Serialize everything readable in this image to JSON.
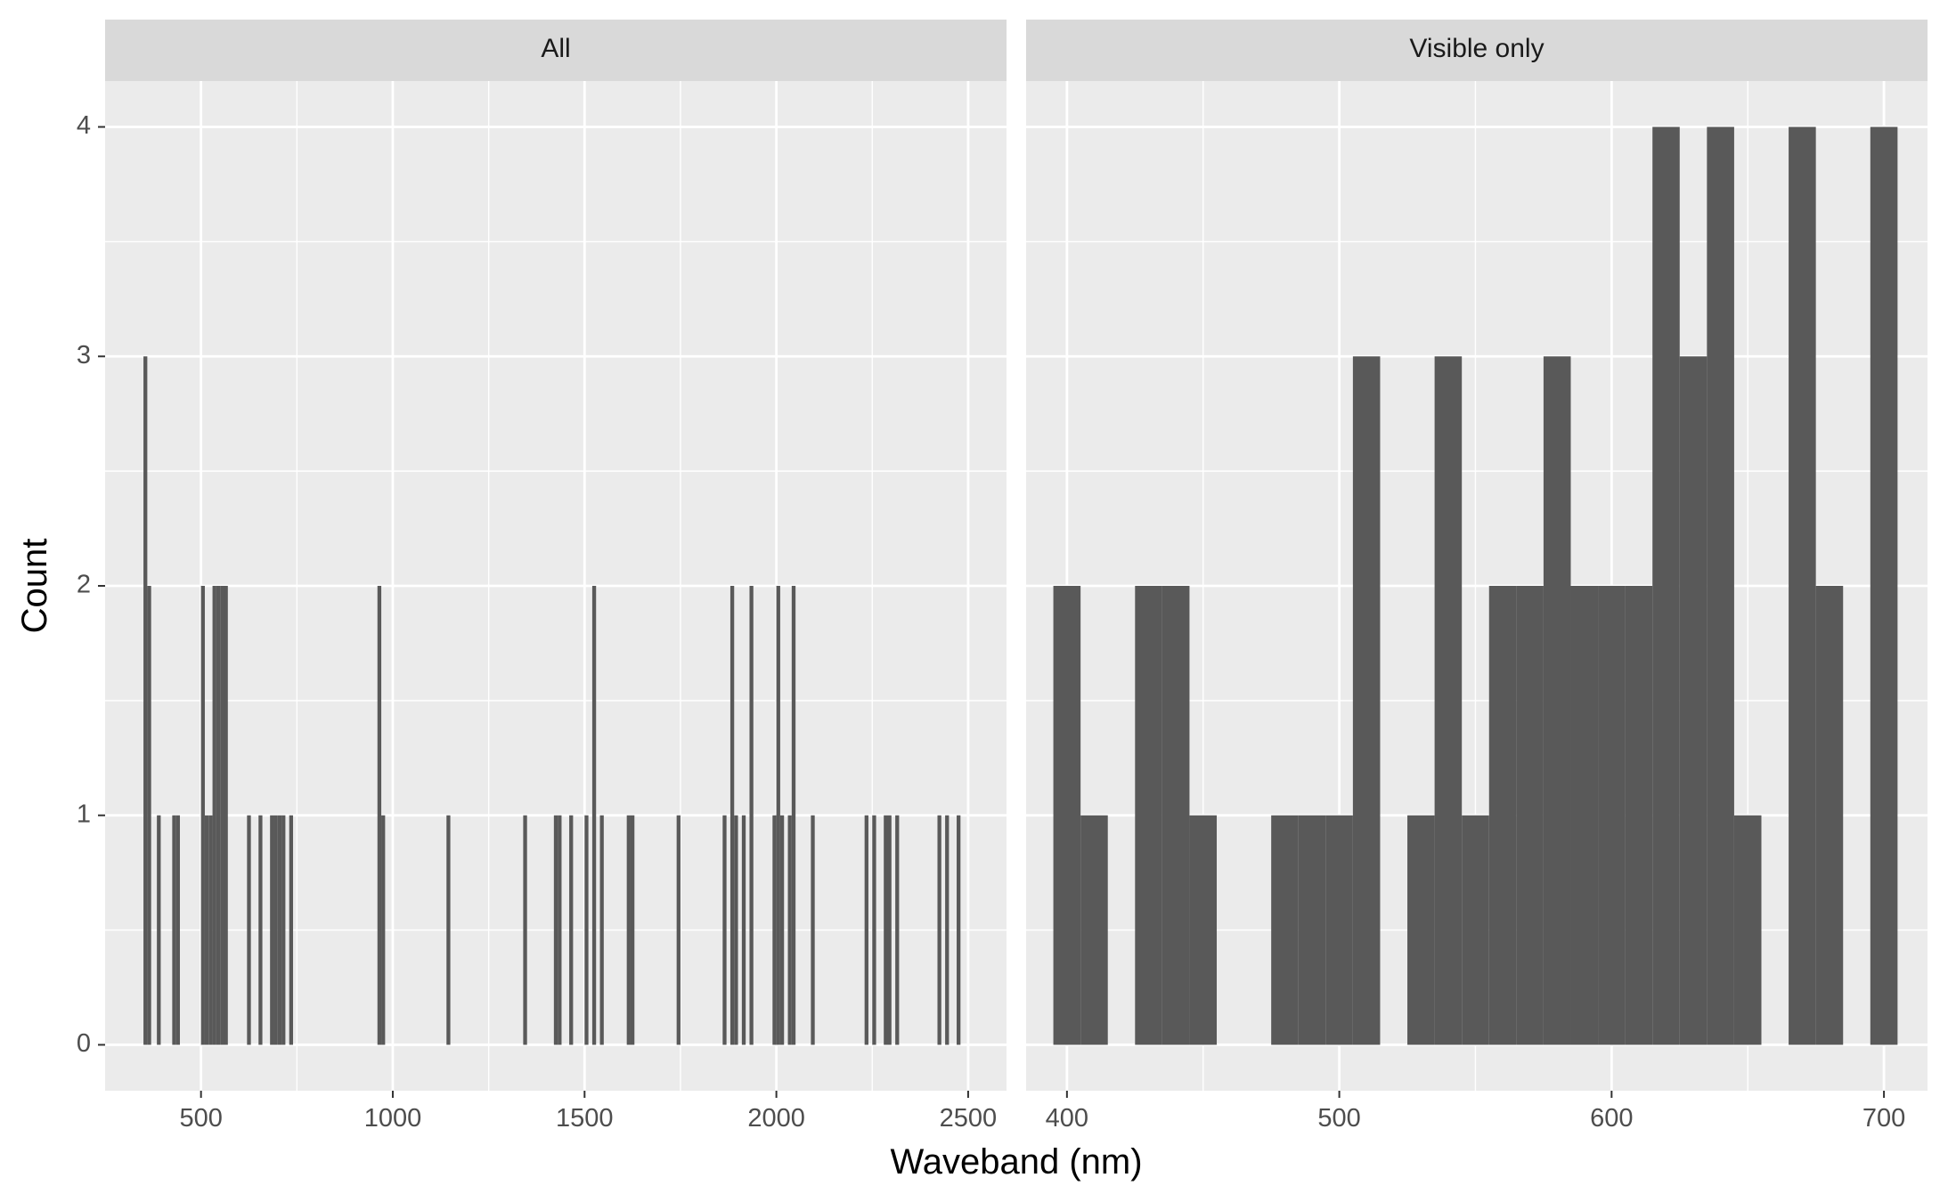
{
  "chart_data": {
    "type": "bar",
    "xlabel": "Waveband (nm)",
    "ylabel": "Count",
    "ylim": [
      -0.2,
      4.2
    ],
    "yticks": [
      0,
      1,
      2,
      3,
      4
    ],
    "grid": true,
    "facets": [
      {
        "strip": "All",
        "xlim": [
          250,
          2600
        ],
        "xticks": [
          500,
          1000,
          1500,
          2000,
          2500
        ],
        "bin_width": 10,
        "bins": [
          {
            "x": 355,
            "y": 3
          },
          {
            "x": 365,
            "y": 2
          },
          {
            "x": 390,
            "y": 1
          },
          {
            "x": 430,
            "y": 1
          },
          {
            "x": 440,
            "y": 1
          },
          {
            "x": 505,
            "y": 2
          },
          {
            "x": 515,
            "y": 1
          },
          {
            "x": 525,
            "y": 1
          },
          {
            "x": 535,
            "y": 2
          },
          {
            "x": 545,
            "y": 2
          },
          {
            "x": 555,
            "y": 2
          },
          {
            "x": 565,
            "y": 2
          },
          {
            "x": 625,
            "y": 1
          },
          {
            "x": 655,
            "y": 1
          },
          {
            "x": 685,
            "y": 1
          },
          {
            "x": 695,
            "y": 1
          },
          {
            "x": 705,
            "y": 1
          },
          {
            "x": 715,
            "y": 1
          },
          {
            "x": 735,
            "y": 1
          },
          {
            "x": 965,
            "y": 2
          },
          {
            "x": 975,
            "y": 1
          },
          {
            "x": 1145,
            "y": 1
          },
          {
            "x": 1345,
            "y": 1
          },
          {
            "x": 1425,
            "y": 1
          },
          {
            "x": 1435,
            "y": 1
          },
          {
            "x": 1465,
            "y": 1
          },
          {
            "x": 1505,
            "y": 1
          },
          {
            "x": 1525,
            "y": 2
          },
          {
            "x": 1545,
            "y": 1
          },
          {
            "x": 1615,
            "y": 1
          },
          {
            "x": 1625,
            "y": 1
          },
          {
            "x": 1745,
            "y": 1
          },
          {
            "x": 1865,
            "y": 1
          },
          {
            "x": 1885,
            "y": 2
          },
          {
            "x": 1895,
            "y": 1
          },
          {
            "x": 1915,
            "y": 1
          },
          {
            "x": 1935,
            "y": 2
          },
          {
            "x": 1995,
            "y": 1
          },
          {
            "x": 2005,
            "y": 2
          },
          {
            "x": 2015,
            "y": 1
          },
          {
            "x": 2035,
            "y": 1
          },
          {
            "x": 2045,
            "y": 2
          },
          {
            "x": 2095,
            "y": 1
          },
          {
            "x": 2235,
            "y": 1
          },
          {
            "x": 2255,
            "y": 1
          },
          {
            "x": 2285,
            "y": 1
          },
          {
            "x": 2295,
            "y": 1
          },
          {
            "x": 2315,
            "y": 1
          },
          {
            "x": 2425,
            "y": 1
          },
          {
            "x": 2445,
            "y": 1
          },
          {
            "x": 2475,
            "y": 1
          }
        ]
      },
      {
        "strip": "Visible only",
        "xlim": [
          385,
          716
        ],
        "xticks": [
          400,
          500,
          600,
          700
        ],
        "bin_width": 10,
        "bins": [
          {
            "x": 400,
            "y": 2
          },
          {
            "x": 410,
            "y": 1
          },
          {
            "x": 430,
            "y": 2
          },
          {
            "x": 440,
            "y": 2
          },
          {
            "x": 450,
            "y": 1
          },
          {
            "x": 480,
            "y": 1
          },
          {
            "x": 490,
            "y": 1
          },
          {
            "x": 500,
            "y": 1
          },
          {
            "x": 510,
            "y": 3
          },
          {
            "x": 530,
            "y": 1
          },
          {
            "x": 540,
            "y": 3
          },
          {
            "x": 550,
            "y": 1
          },
          {
            "x": 560,
            "y": 2
          },
          {
            "x": 570,
            "y": 2
          },
          {
            "x": 580,
            "y": 3
          },
          {
            "x": 590,
            "y": 2
          },
          {
            "x": 600,
            "y": 2
          },
          {
            "x": 610,
            "y": 2
          },
          {
            "x": 620,
            "y": 4
          },
          {
            "x": 630,
            "y": 3
          },
          {
            "x": 640,
            "y": 4
          },
          {
            "x": 650,
            "y": 1
          },
          {
            "x": 670,
            "y": 4
          },
          {
            "x": 680,
            "y": 2
          },
          {
            "x": 700,
            "y": 4
          }
        ]
      }
    ]
  },
  "colors": {
    "panel_background": "#ebebeb",
    "strip_background": "#d9d9d9",
    "grid": "#ffffff",
    "bar_fill": "#595959",
    "tick_color": "#333333"
  }
}
